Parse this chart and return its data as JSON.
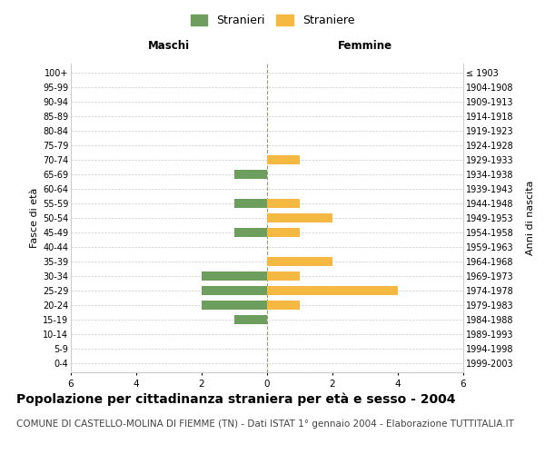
{
  "age_groups": [
    "0-4",
    "5-9",
    "10-14",
    "15-19",
    "20-24",
    "25-29",
    "30-34",
    "35-39",
    "40-44",
    "45-49",
    "50-54",
    "55-59",
    "60-64",
    "65-69",
    "70-74",
    "75-79",
    "80-84",
    "85-89",
    "90-94",
    "95-99",
    "100+"
  ],
  "birth_years": [
    "1999-2003",
    "1994-1998",
    "1989-1993",
    "1984-1988",
    "1979-1983",
    "1974-1978",
    "1969-1973",
    "1964-1968",
    "1959-1963",
    "1954-1958",
    "1949-1953",
    "1944-1948",
    "1939-1943",
    "1934-1938",
    "1929-1933",
    "1924-1928",
    "1919-1923",
    "1914-1918",
    "1909-1913",
    "1904-1908",
    "≤ 1903"
  ],
  "males": [
    0,
    0,
    0,
    1,
    2,
    2,
    2,
    0,
    0,
    1,
    0,
    1,
    0,
    1,
    0,
    0,
    0,
    0,
    0,
    0,
    0
  ],
  "females": [
    0,
    0,
    0,
    0,
    1,
    4,
    1,
    2,
    0,
    1,
    2,
    1,
    0,
    0,
    1,
    0,
    0,
    0,
    0,
    0,
    0
  ],
  "male_color": "#6e9e5e",
  "female_color": "#f5b942",
  "grid_color": "#cccccc",
  "center_line_color": "#999977",
  "xlim": 6,
  "xlabel_left": "Maschi",
  "xlabel_right": "Femmine",
  "ylabel_left": "Fasce di età",
  "ylabel_right": "Anni di nascita",
  "legend_male": "Stranieri",
  "legend_female": "Straniere",
  "title": "Popolazione per cittadinanza straniera per età e sesso - 2004",
  "subtitle": "COMUNE DI CASTELLO-MOLINA DI FIEMME (TN) - Dati ISTAT 1° gennaio 2004 - Elaborazione TUTTITALIA.IT",
  "title_fontsize": 10,
  "subtitle_fontsize": 7.5
}
